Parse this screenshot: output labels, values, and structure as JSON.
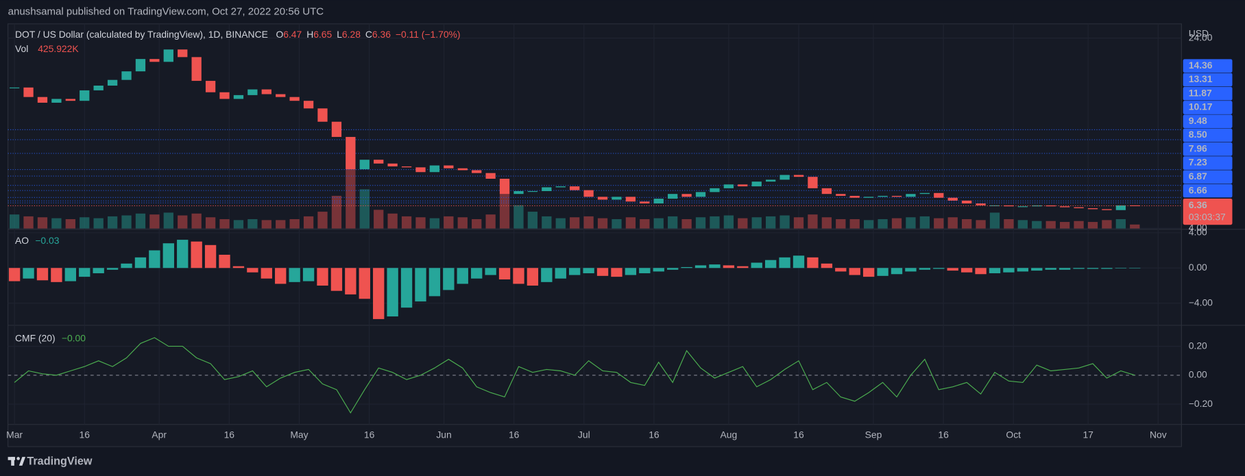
{
  "header": {
    "byline": "anushsamal published on TradingView.com, Oct 27, 2022 20:56 UTC",
    "logo": "TradingView"
  },
  "chart_data": [
    {
      "type": "candlestick",
      "title": "DOT / US Dollar (calculated by TradingView), 1D, BINANCE",
      "ohlc": [
        {
          "label": "O",
          "value": 6.47
        },
        {
          "label": "H",
          "value": 6.65
        },
        {
          "label": "L",
          "value": 6.28
        },
        {
          "label": "C",
          "value": 6.36
        }
      ],
      "change_text": "−0.11 (−1.70%)",
      "currency": "USD",
      "x": [
        0,
        3,
        6,
        9,
        12,
        15,
        18,
        21,
        24,
        27,
        30,
        33,
        36,
        39,
        42,
        45,
        48,
        51,
        54,
        57,
        60,
        63,
        66,
        69,
        72,
        75,
        78,
        81,
        84,
        87,
        90,
        93,
        96,
        99,
        102,
        105,
        108,
        111,
        114,
        117,
        120,
        123,
        126,
        129,
        132,
        135,
        138,
        141,
        144,
        147,
        150,
        153,
        156,
        159,
        162,
        165,
        168,
        171,
        174,
        177,
        180,
        183,
        186,
        189,
        192,
        195,
        198,
        201,
        204,
        207,
        210,
        213,
        216,
        219,
        222,
        225,
        228,
        231,
        234,
        237,
        240
      ],
      "xlim": [
        -1.4,
        250
      ],
      "xticks": [
        {
          "value": 0,
          "label": "Mar"
        },
        {
          "value": 15,
          "label": "16"
        },
        {
          "value": 31,
          "label": "Apr"
        },
        {
          "value": 46,
          "label": "16"
        },
        {
          "value": 61,
          "label": "May"
        },
        {
          "value": 76,
          "label": "16"
        },
        {
          "value": 92,
          "label": "Jun"
        },
        {
          "value": 107,
          "label": "16"
        },
        {
          "value": 122,
          "label": "Jul"
        },
        {
          "value": 137,
          "label": "16"
        },
        {
          "value": 153,
          "label": "Aug"
        },
        {
          "value": 168,
          "label": "16"
        },
        {
          "value": 184,
          "label": "Sep"
        },
        {
          "value": 199,
          "label": "16"
        },
        {
          "value": 214,
          "label": "Oct"
        },
        {
          "value": 230,
          "label": "17"
        },
        {
          "value": 245,
          "label": "Nov"
        }
      ],
      "close": [
        18.8,
        17.8,
        17.2,
        17.6,
        17.4,
        18.5,
        19.0,
        19.6,
        20.5,
        21.8,
        21.5,
        22.8,
        22.0,
        19.5,
        18.3,
        17.6,
        18.0,
        18.6,
        18.1,
        17.8,
        17.4,
        16.6,
        15.2,
        13.6,
        10.2,
        11.2,
        10.8,
        10.5,
        10.4,
        9.9,
        10.6,
        10.3,
        10.1,
        9.8,
        9.2,
        7.6,
        7.9,
        7.9,
        8.3,
        8.4,
        8.0,
        7.3,
        7.0,
        7.3,
        6.8,
        6.6,
        7.1,
        7.6,
        7.3,
        7.8,
        8.2,
        8.6,
        8.4,
        8.9,
        9.1,
        9.6,
        9.4,
        8.2,
        7.6,
        7.4,
        7.2,
        7.3,
        7.4,
        7.3,
        7.6,
        7.7,
        7.2,
        6.9,
        6.6,
        6.4,
        6.4,
        6.3,
        6.3,
        6.4,
        6.3,
        6.2,
        6.1,
        6.0,
        5.9,
        6.4,
        6.36
      ],
      "volume": {
        "name": "Vol",
        "last_value_label": "425.922K",
        "values": [
          1500,
          1300,
          1200,
          1100,
          1000,
          1200,
          1100,
          1300,
          1400,
          1600,
          1500,
          1700,
          1400,
          1600,
          1200,
          1000,
          900,
          1000,
          900,
          900,
          1000,
          1300,
          1800,
          3500,
          8500,
          4200,
          2000,
          1600,
          1300,
          1200,
          1100,
          1300,
          1200,
          1000,
          1500,
          5000,
          2500,
          1800,
          1300,
          1100,
          1200,
          1300,
          1100,
          1000,
          1200,
          1000,
          1100,
          1300,
          1000,
          1200,
          1300,
          1400,
          1100,
          1200,
          1300,
          1400,
          1200,
          1500,
          1200,
          1000,
          1000,
          900,
          1000,
          1100,
          1200,
          1300,
          1100,
          1200,
          1000,
          900,
          1700,
          1000,
          900,
          800,
          800,
          700,
          800,
          700,
          900,
          1000,
          425.922
        ]
      },
      "levels": [
        {
          "value": 14.36,
          "label": "14.36"
        },
        {
          "value": 13.31,
          "label": "13.31"
        },
        {
          "value": 11.87,
          "label": "11.87"
        },
        {
          "value": 10.17,
          "label": "10.17"
        },
        {
          "value": 9.48,
          "label": "9.48"
        },
        {
          "value": 8.5,
          "label": "8.50"
        },
        {
          "value": 7.96,
          "label": "7.96"
        },
        {
          "value": 7.23,
          "label": "7.23"
        },
        {
          "value": 6.87,
          "label": "6.87"
        },
        {
          "value": 6.66,
          "label": "6.66"
        }
      ],
      "last_price": 6.36,
      "countdown": "03:03:37",
      "ylim": [
        3.8,
        25.5
      ],
      "yticks": [
        {
          "value": 4,
          "label": "4.00"
        },
        {
          "value": 24,
          "label": "24.00"
        }
      ],
      "up_color": "#26a69a",
      "down_color": "#ef5350",
      "level_color": "#2962ff",
      "grid": true
    },
    {
      "type": "histogram",
      "title": "AO",
      "last_label": "−0.03",
      "values": [
        -1.5,
        -1.2,
        -1.4,
        -1.6,
        -1.5,
        -1.0,
        -0.6,
        -0.2,
        0.5,
        1.2,
        2.0,
        2.8,
        3.2,
        3.0,
        2.6,
        1.5,
        0.2,
        -0.5,
        -1.2,
        -1.8,
        -1.6,
        -1.5,
        -2.0,
        -2.6,
        -3.0,
        -3.5,
        -5.8,
        -5.5,
        -4.5,
        -3.8,
        -3.2,
        -2.5,
        -1.8,
        -1.2,
        -0.8,
        -1.3,
        -1.8,
        -2.0,
        -1.6,
        -1.2,
        -0.8,
        -0.6,
        -0.9,
        -1.0,
        -0.8,
        -0.6,
        -0.4,
        -0.2,
        0.1,
        0.3,
        0.4,
        0.3,
        0.2,
        0.6,
        0.9,
        1.2,
        1.4,
        1.2,
        0.5,
        -0.4,
        -0.8,
        -1.0,
        -0.9,
        -0.7,
        -0.4,
        -0.2,
        -0.1,
        -0.3,
        -0.5,
        -0.7,
        -0.6,
        -0.5,
        -0.4,
        -0.3,
        -0.2,
        -0.2,
        -0.1,
        -0.1,
        -0.1,
        -0.05,
        -0.03
      ],
      "ylim": [
        -6.5,
        4.3
      ],
      "yticks": [
        {
          "value": 4,
          "label": "4.00"
        },
        {
          "value": 0,
          "label": "0.00"
        },
        {
          "value": -4,
          "label": "−4.00"
        }
      ],
      "up_color": "#26a69a",
      "down_color": "#ef5350",
      "grid": true
    },
    {
      "type": "line",
      "title": "CMF (20)",
      "last_label": "−0.00",
      "color": "#4caf50",
      "values": [
        -0.05,
        0.03,
        0.01,
        0.0,
        0.03,
        0.06,
        0.1,
        0.06,
        0.12,
        0.22,
        0.26,
        0.2,
        0.2,
        0.12,
        0.08,
        -0.03,
        -0.01,
        0.03,
        -0.08,
        -0.02,
        0.02,
        0.04,
        -0.06,
        -0.1,
        -0.26,
        -0.1,
        0.05,
        0.02,
        -0.03,
        0.0,
        0.05,
        0.11,
        0.05,
        -0.08,
        -0.12,
        -0.15,
        0.06,
        0.02,
        0.04,
        0.03,
        0.0,
        0.1,
        0.03,
        0.02,
        -0.05,
        -0.07,
        0.09,
        -0.05,
        0.17,
        0.05,
        -0.02,
        0.02,
        0.06,
        -0.08,
        -0.03,
        0.04,
        0.1,
        -0.1,
        -0.05,
        -0.15,
        -0.18,
        -0.12,
        -0.05,
        -0.15,
        0.0,
        0.11,
        -0.1,
        -0.08,
        -0.05,
        -0.13,
        0.02,
        -0.04,
        -0.05,
        0.07,
        0.03,
        0.04,
        0.05,
        0.08,
        -0.02,
        0.03,
        0.0
      ],
      "ylim": [
        -0.34,
        0.34
      ],
      "yticks": [
        {
          "value": 0.2,
          "label": "0.20"
        },
        {
          "value": 0,
          "label": "0.00"
        },
        {
          "value": -0.2,
          "label": "−0.20"
        }
      ],
      "grid": true
    }
  ]
}
